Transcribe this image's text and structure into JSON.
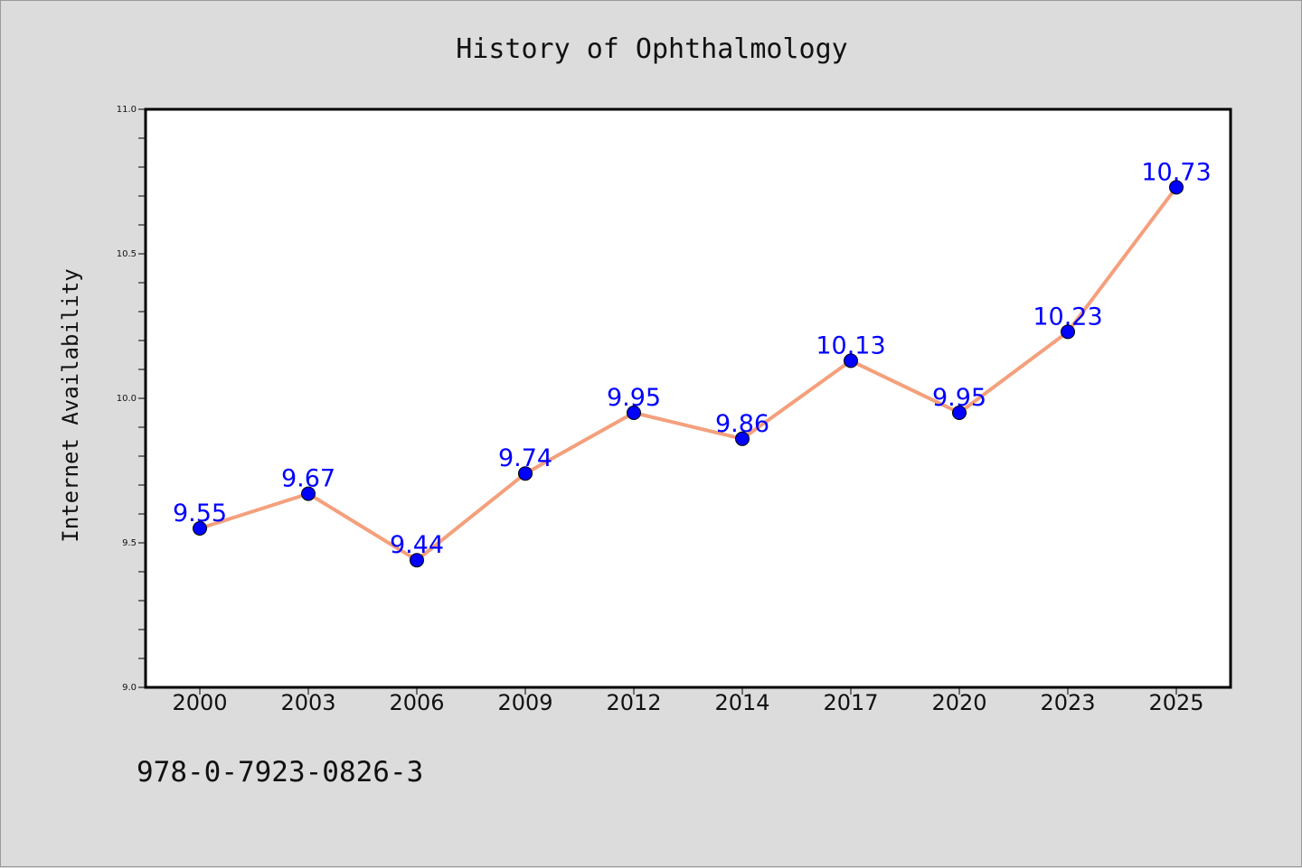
{
  "chart_data": {
    "type": "line",
    "title": "History of Ophthalmology",
    "xlabel": "",
    "ylabel": "Internet Availability",
    "categories": [
      "2000",
      "2003",
      "2006",
      "2009",
      "2012",
      "2014",
      "2017",
      "2020",
      "2023",
      "2025"
    ],
    "series": [
      {
        "values": [
          9.55,
          9.67,
          9.44,
          9.74,
          9.95,
          9.86,
          10.13,
          9.95,
          10.23,
          10.73
        ],
        "labels": [
          "9.55",
          "9.67",
          "9.44",
          "9.74",
          "9.95",
          "9.86",
          "10.13",
          "9.95",
          "10.23",
          "10.73"
        ],
        "line_color": "#f4a07c",
        "marker_color": "#0000ff",
        "label_color": "#0000ff"
      }
    ],
    "ylim": [
      9.0,
      11.0
    ],
    "yticks": [
      "9.0",
      "9.5",
      "10.0",
      "10.5",
      "11.0"
    ],
    "grid": false,
    "legend": "none"
  },
  "footer": {
    "text": "978-0-7923-0826-3"
  },
  "colors": {
    "background": "#dcdcdc",
    "plot_background": "#ffffff",
    "axis": "#000000"
  }
}
